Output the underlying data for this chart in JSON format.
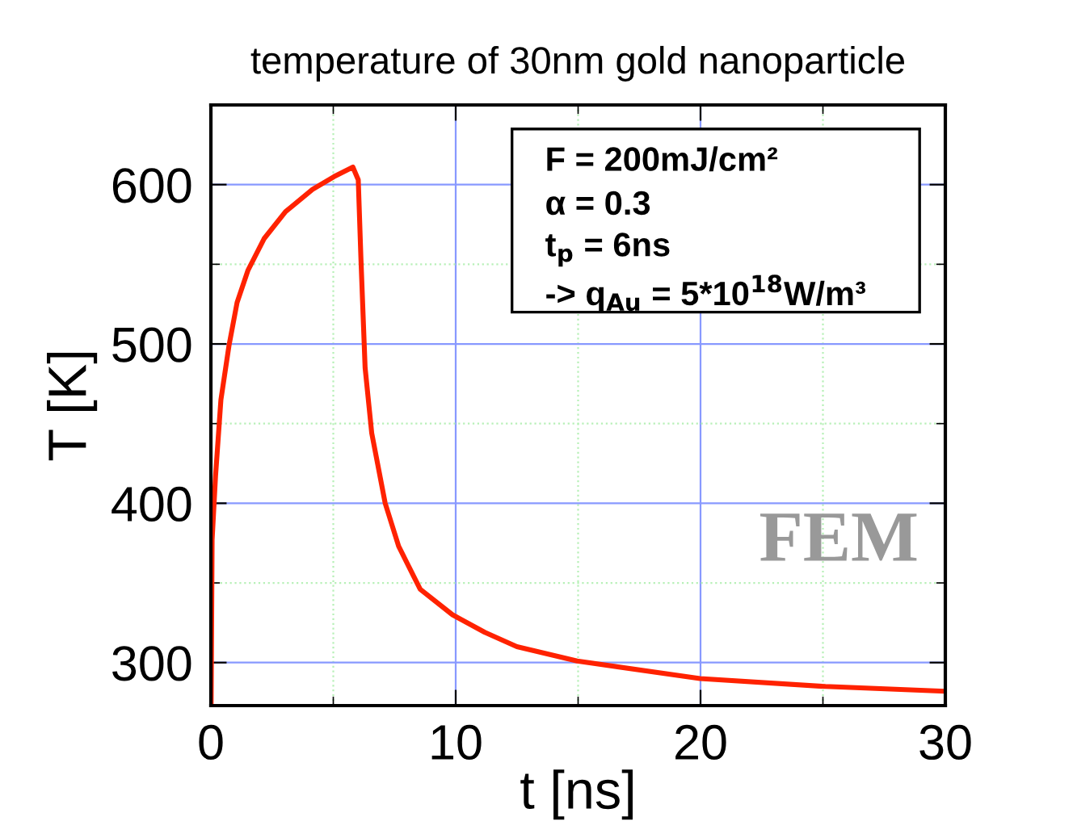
{
  "chart_data": {
    "type": "line",
    "title": "temperature of 30nm gold nanoparticle",
    "xlabel": "t [ns]",
    "ylabel": "T [K]",
    "series": [
      {
        "color": "#ff2200",
        "x": [
          0.01,
          0.05,
          0.19,
          0.41,
          0.74,
          1.07,
          1.51,
          2.17,
          3.05,
          4.15,
          5.03,
          5.8,
          6.02,
          6.13,
          6.3,
          6.57,
          7.12,
          7.67,
          8.55,
          9.87,
          11.19,
          12.5,
          14.96,
          19.98,
          25.1,
          30
        ],
        "values": [
          275,
          377,
          417,
          465,
          499,
          526,
          546,
          566,
          583,
          597,
          605,
          611,
          603,
          553,
          485,
          444,
          400,
          373,
          346,
          330,
          319,
          310,
          301,
          290,
          285,
          282
        ]
      }
    ],
    "xlim": [
      0,
      30
    ],
    "ylim": [
      273,
      650
    ],
    "xticks": [
      0,
      {
        "value": 5,
        "label": null
      },
      10,
      {
        "value": 15,
        "label": null
      },
      20,
      {
        "value": 25,
        "label": null
      },
      30
    ],
    "yticks": [
      300,
      {
        "value": 350,
        "label": null
      },
      400,
      {
        "value": 450,
        "label": null
      },
      500,
      {
        "value": 550,
        "label": null
      },
      600
    ],
    "grid": true,
    "marker": "none",
    "line_style": "solid",
    "annotations": [
      "F = 200mJ/cm²",
      "α = 0.3",
      "t$_{p}$ = 6ns",
      "-> q$_{Au}$ = 5*10$^{18}$W/m³",
      "FEM"
    ]
  }
}
